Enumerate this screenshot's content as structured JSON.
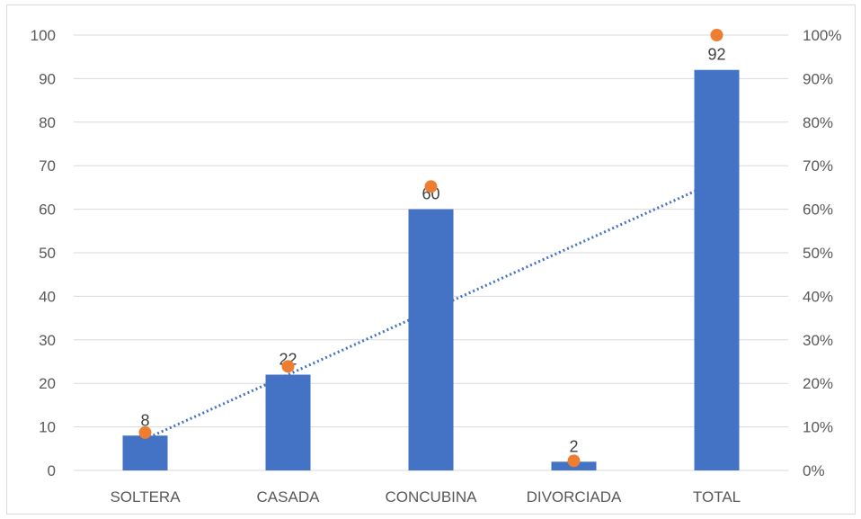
{
  "chart_data": {
    "type": "bar",
    "categories": [
      "SOLTERA",
      "CASADA",
      "CONCUBINA",
      "DIVORCIADA",
      "TOTAL"
    ],
    "series": [
      {
        "type": "bar",
        "axis": "left",
        "values": [
          8,
          22,
          60,
          2,
          92
        ],
        "data_labels": [
          "8",
          "22",
          "60",
          "2",
          "92"
        ],
        "color": "#4472C4"
      },
      {
        "type": "scatter",
        "axis": "right",
        "values": [
          0.087,
          0.239,
          0.652,
          0.022,
          1.0
        ],
        "color": "#ED7D31"
      }
    ],
    "trendline": {
      "type": "linear",
      "style": "dotted",
      "color": "#4472C4",
      "from_category": "SOLTERA",
      "to_category": "TOTAL"
    },
    "y_left": {
      "ylim": [
        0,
        100
      ],
      "ticks": [
        0,
        10,
        20,
        30,
        40,
        50,
        60,
        70,
        80,
        90,
        100
      ],
      "tick_labels": [
        "0",
        "10",
        "20",
        "30",
        "40",
        "50",
        "60",
        "70",
        "80",
        "90",
        "100"
      ]
    },
    "y_right": {
      "ylim": [
        0,
        1
      ],
      "ticks": [
        0,
        0.1,
        0.2,
        0.3,
        0.4,
        0.5,
        0.6,
        0.7,
        0.8,
        0.9,
        1.0
      ],
      "tick_labels": [
        "0%",
        "10%",
        "20%",
        "30%",
        "40%",
        "50%",
        "60%",
        "70%",
        "80%",
        "90%",
        "100%"
      ]
    },
    "title": "",
    "xlabel": "",
    "ylabel": "",
    "grid": true,
    "gridline_color": "#d9d9d9",
    "text_color": "#595959",
    "label_color": "#404040"
  }
}
